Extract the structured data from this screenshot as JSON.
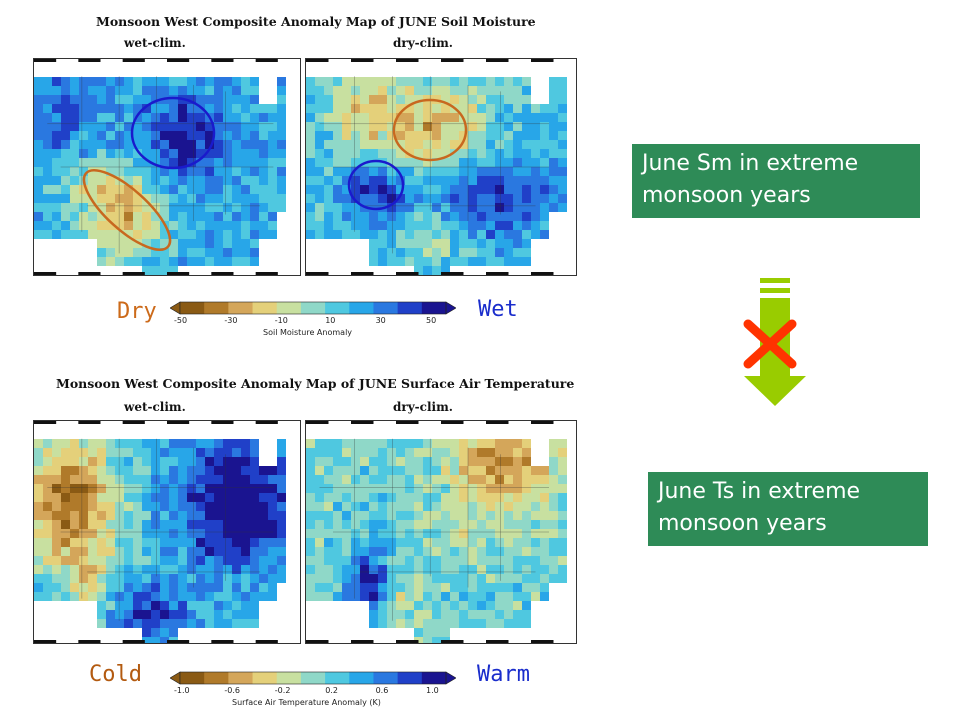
{
  "panels": [
    {
      "title": "Monsoon West Composite Anomaly Map of JUNE Soil Moisture",
      "left_label": "wet-clim.",
      "right_label": "dry-clim.",
      "colorbar": {
        "ticks": [
          "-50",
          "-30",
          "-10",
          "10",
          "30",
          "50"
        ],
        "label": "Soil Moisture Anomaly",
        "low_word": "Dry",
        "high_word": "Wet",
        "low_color": "#cc6a1a",
        "high_color": "#1a2dcc"
      },
      "left_circles": [
        {
          "color": "#1a1acc"
        },
        {
          "color": "#c8681f"
        }
      ],
      "right_circles": [
        {
          "color": "#c8681f"
        },
        {
          "color": "#1a1acc"
        }
      ]
    },
    {
      "title": "Monsoon West Composite Anomaly Map of JUNE Surface Air Temperature",
      "left_label": "wet-clim.",
      "right_label": "dry-clim.",
      "colorbar": {
        "ticks": [
          "-1.0",
          "-0.6",
          "-0.2",
          "0.2",
          "0.6",
          "1.0"
        ],
        "label": "Surface Air Temperature Anomaly (K)",
        "low_word": "Cold",
        "high_word": "Warm",
        "low_color": "#b35a10",
        "high_color": "#1a2dcc"
      },
      "left_circles": [
        {
          "color": "#c8681f"
        }
      ],
      "right_circles": [
        {
          "color": "#1a1acc"
        }
      ]
    }
  ],
  "notes": {
    "top_lines": [
      "June Sm  in extreme",
      "monsoon years"
    ],
    "bottom_lines": [
      "June Ts  in extreme",
      "monsoon years"
    ],
    "box_color": "#2e8b57"
  },
  "arrow": {
    "color": "#99cc00",
    "cross_color": "#ff3300"
  },
  "palette": [
    "#8a5a14",
    "#b07a2a",
    "#d4a65a",
    "#e4d07a",
    "#c8e0a0",
    "#8fd8c8",
    "#4fc8e0",
    "#28a6e8",
    "#2a78e0",
    "#2040c8",
    "#1a1490"
  ]
}
